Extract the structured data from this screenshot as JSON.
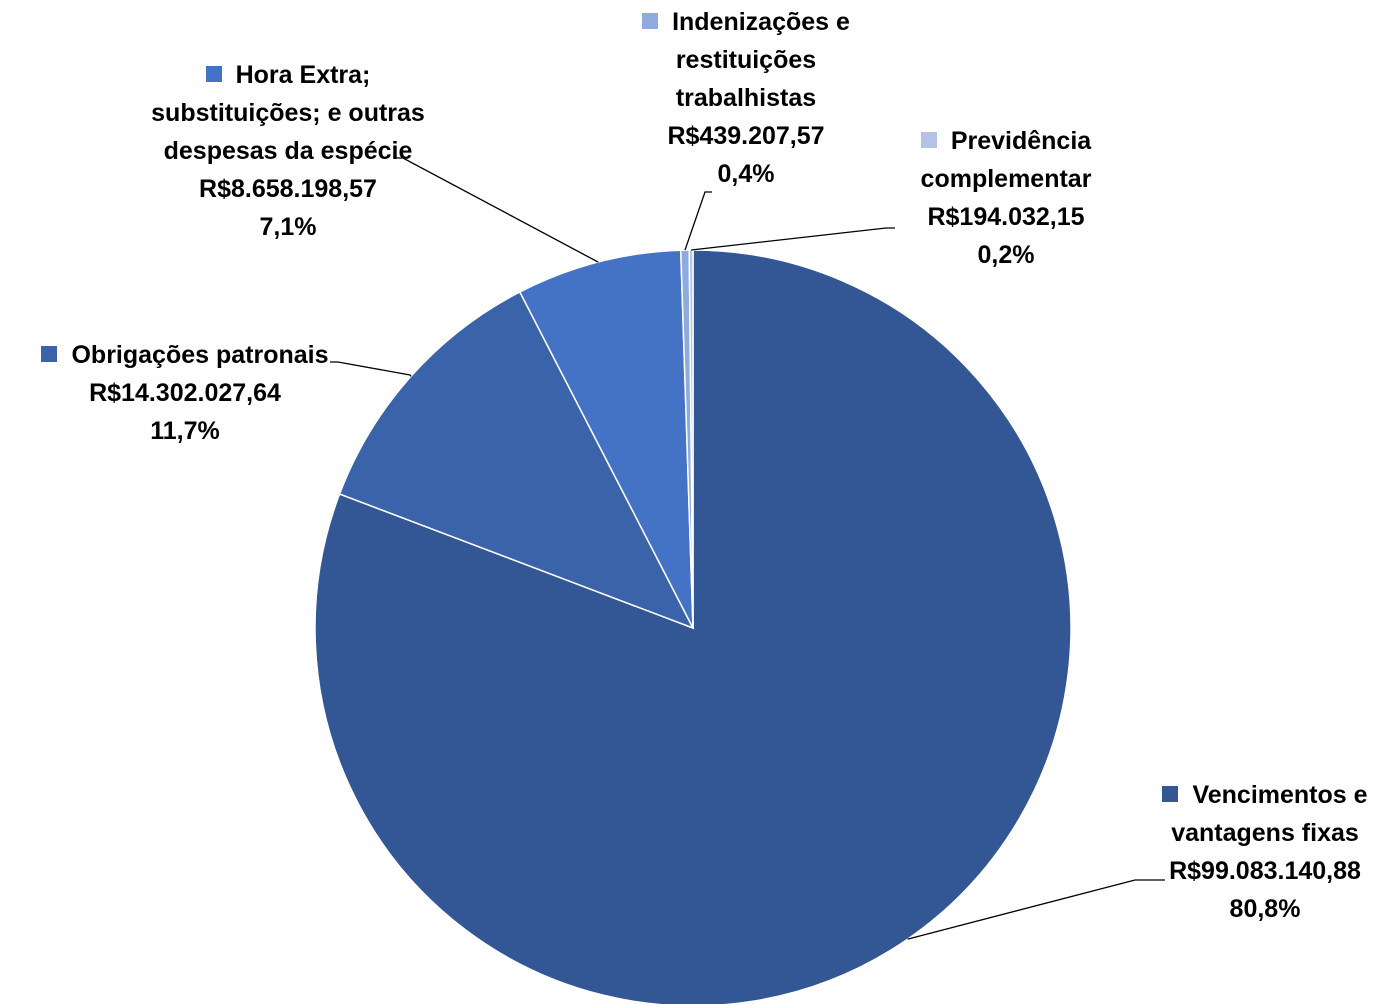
{
  "chart_data": {
    "type": "pie",
    "title": "",
    "start_angle_deg": 0,
    "direction": "clockwise",
    "slices": [
      {
        "category": "Vencimentos e vantagens fixas",
        "value": 99083140.88,
        "value_label": "R$99.083.140,88",
        "percent": 80.8,
        "percent_label": "80,8%",
        "color": "#335694",
        "name_lines": [
          "Vencimentos e",
          "vantagens fixas"
        ]
      },
      {
        "category": "Obrigações patronais",
        "value": 14302027.64,
        "value_label": "R$14.302.027,64",
        "percent": 11.7,
        "percent_label": "11,7%",
        "color": "#3a63aa",
        "name_lines": [
          "Obrigações patronais"
        ]
      },
      {
        "category": "Hora Extra; substituições; e outras despesas da espécie",
        "value": 8658198.57,
        "value_label": "R$8.658.198,57",
        "percent": 7.1,
        "percent_label": "7,1%",
        "color": "#4472c4",
        "name_lines": [
          "Hora Extra;",
          "substituições; e outras",
          "despesas da espécie"
        ]
      },
      {
        "category": "Indenizações e restituições trabalhistas",
        "value": 439207.57,
        "value_label": "R$439.207,57",
        "percent": 0.4,
        "percent_label": "0,4%",
        "color": "#8faadc",
        "name_lines": [
          "Indenizações e",
          "restituições",
          "trabalhistas"
        ]
      },
      {
        "category": "Previdência complementar",
        "value": 194032.15,
        "value_label": "R$194.032,15",
        "percent": 0.2,
        "percent_label": "0,2%",
        "color": "#b4c2e6",
        "name_lines": [
          "Previdência",
          "complementar"
        ]
      }
    ]
  }
}
